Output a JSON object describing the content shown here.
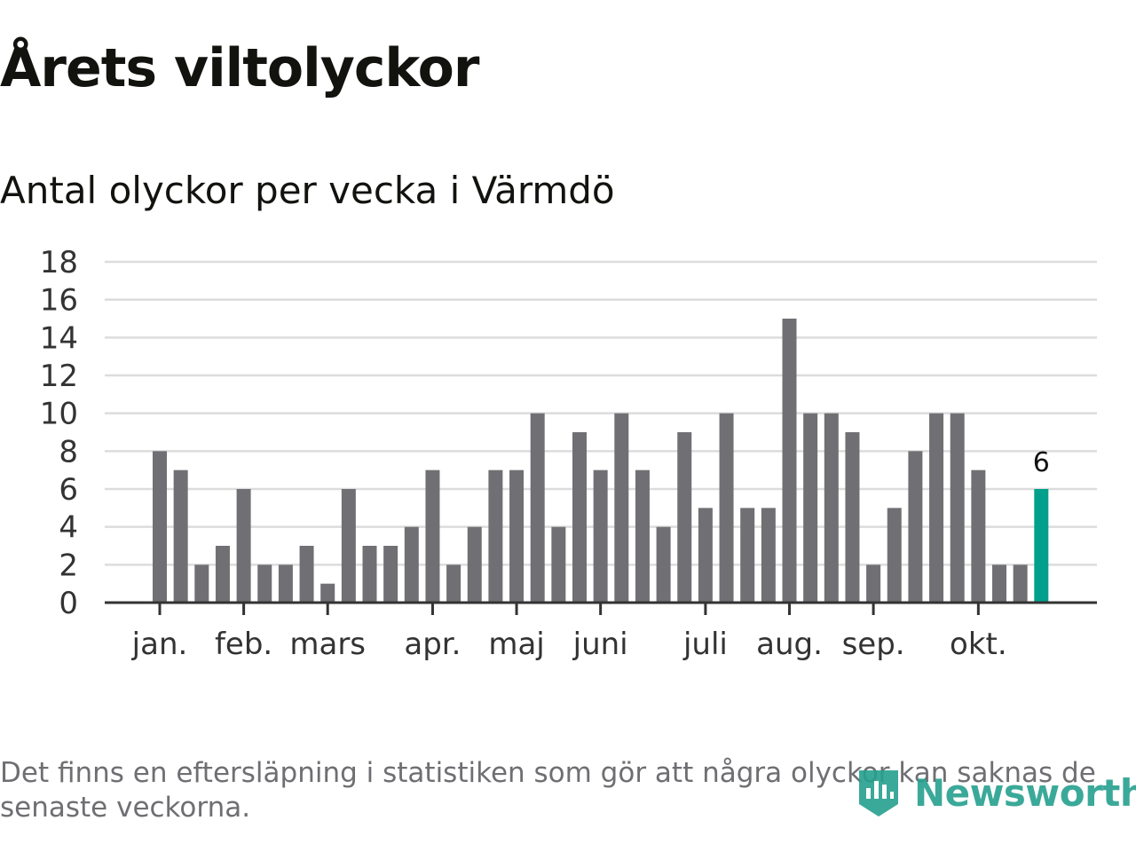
{
  "header": {
    "title": "Årets viltolyckor",
    "subtitle": "Antal olyckor per vecka i Värmdö"
  },
  "footer": {
    "note": "Det finns en eftersläpning i statistiken som gör att några olyckor kan saknas de senaste veckorna.",
    "brand": "Newsworthy"
  },
  "colors": {
    "bar": "#707074",
    "highlight": "#00a08c",
    "grid": "#dcdcdc",
    "axis": "#333333",
    "text": "#333333",
    "logo": "#26a08e"
  },
  "chart_data": {
    "type": "bar",
    "title": "Årets viltolyckor",
    "subtitle": "Antal olyckor per vecka i Värmdö",
    "xlabel": "",
    "ylabel": "",
    "ylim": [
      0,
      18
    ],
    "yticks": [
      0,
      2,
      4,
      6,
      8,
      10,
      12,
      14,
      16,
      18
    ],
    "grid": true,
    "values": [
      8,
      7,
      2,
      3,
      6,
      2,
      2,
      3,
      1,
      6,
      3,
      3,
      4,
      7,
      2,
      4,
      7,
      7,
      10,
      4,
      9,
      7,
      10,
      7,
      4,
      9,
      5,
      10,
      5,
      5,
      15,
      10,
      10,
      9,
      2,
      5,
      8,
      10,
      10,
      7,
      2,
      2,
      6
    ],
    "highlight_index": 42,
    "highlight_label": "6",
    "month_ticks": [
      {
        "label": "jan.",
        "index": 0
      },
      {
        "label": "feb.",
        "index": 4
      },
      {
        "label": "mars",
        "index": 8
      },
      {
        "label": "apr.",
        "index": 13
      },
      {
        "label": "maj",
        "index": 17
      },
      {
        "label": "juni",
        "index": 21
      },
      {
        "label": "juli",
        "index": 26
      },
      {
        "label": "aug.",
        "index": 30
      },
      {
        "label": "sep.",
        "index": 34
      },
      {
        "label": "okt.",
        "index": 39
      }
    ]
  }
}
